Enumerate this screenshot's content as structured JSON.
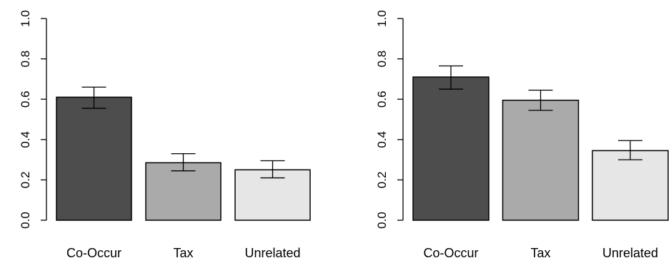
{
  "chart_data": [
    {
      "type": "bar",
      "categories": [
        "Co-Occur",
        "Tax",
        "Unrelated"
      ],
      "values": [
        0.61,
        0.285,
        0.25
      ],
      "error_low": [
        0.555,
        0.245,
        0.21
      ],
      "error_high": [
        0.66,
        0.33,
        0.295
      ],
      "bar_colors": [
        "#4d4d4d",
        "#aaaaaa",
        "#e6e6e6"
      ],
      "ylim": [
        0,
        1
      ],
      "yticks": [
        0,
        0.2,
        0.4,
        0.6,
        0.8,
        1
      ],
      "ytick_labels": [
        "0.0",
        "0.2",
        "0.4",
        "0.6",
        "0.8",
        "1.0"
      ],
      "grid": false,
      "title": "",
      "xlabel": "",
      "ylabel": ""
    },
    {
      "type": "bar",
      "categories": [
        "Co-Occur",
        "Tax",
        "Unrelated"
      ],
      "values": [
        0.71,
        0.595,
        0.345
      ],
      "error_low": [
        0.65,
        0.545,
        0.3
      ],
      "error_high": [
        0.765,
        0.645,
        0.395
      ],
      "bar_colors": [
        "#4d4d4d",
        "#aaaaaa",
        "#e6e6e6"
      ],
      "ylim": [
        0,
        1
      ],
      "yticks": [
        0,
        0.2,
        0.4,
        0.6,
        0.8,
        1
      ],
      "ytick_labels": [
        "0.0",
        "0.2",
        "0.4",
        "0.6",
        "0.8",
        "1.0"
      ],
      "grid": false,
      "title": "",
      "xlabel": "",
      "ylabel": ""
    }
  ]
}
